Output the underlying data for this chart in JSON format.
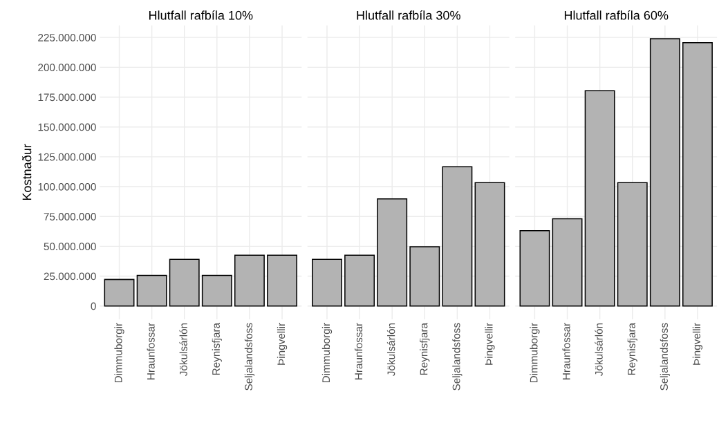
{
  "chart_data": [
    {
      "type": "bar",
      "title": "Hlutfall rafbíla 10%",
      "ylabel": "Kostnaður",
      "categories": [
        "Dimmuborgir",
        "Hraunfossar",
        "Jökulsárlón",
        "Reynisfjara",
        "Seljalandsfoss",
        "Þingvellir"
      ],
      "values": [
        22200000,
        25600000,
        39100000,
        25600000,
        42500000,
        42500000
      ],
      "color": "#b3b3b3",
      "ylim": [
        -11200000,
        235100000
      ],
      "yticks": [
        {
          "value": 0,
          "label": "0"
        },
        {
          "value": 25000000,
          "label": "25.000.000"
        },
        {
          "value": 50000000,
          "label": "50.000.000"
        },
        {
          "value": 75000000,
          "label": "75.000.000"
        },
        {
          "value": 100000000,
          "label": "100.000.000"
        },
        {
          "value": 125000000,
          "label": "125.000.000"
        },
        {
          "value": 150000000,
          "label": "150.000.000"
        },
        {
          "value": 175000000,
          "label": "175.000.000"
        },
        {
          "value": 200000000,
          "label": "200.000.000"
        },
        {
          "value": 225000000,
          "label": "225.000.000"
        }
      ],
      "grid": true
    },
    {
      "type": "bar",
      "title": "Hlutfall rafbíla 30%",
      "categories": [
        "Dimmuborgir",
        "Hraunfossar",
        "Jökulsárlón",
        "Reynisfjara",
        "Seljalandsfoss",
        "Þingvellir"
      ],
      "values": [
        39100000,
        42500000,
        89800000,
        49600000,
        116700000,
        103400000
      ],
      "color": "#b3b3b3",
      "ylim": [
        -11200000,
        235100000
      ],
      "yticks": [
        0,
        25000000,
        50000000,
        75000000,
        100000000,
        125000000,
        150000000,
        175000000,
        200000000,
        225000000
      ],
      "grid": true,
      "tick_labels": "x"
    },
    {
      "type": "bar",
      "title": "Hlutfall rafbíla 60%",
      "categories": [
        "Dimmuborgir",
        "Hraunfossar",
        "Jökulsárlón",
        "Reynisfjara",
        "Seljalandsfoss",
        "Þingvellir"
      ],
      "values": [
        63100000,
        73100000,
        180300000,
        103400000,
        223900000,
        220600000
      ],
      "color": "#b3b3b3",
      "ylim": [
        -11200000,
        235100000
      ],
      "yticks": [
        0,
        25000000,
        50000000,
        75000000,
        100000000,
        125000000,
        150000000,
        175000000,
        200000000,
        225000000
      ],
      "grid": true,
      "tick_labels": "x"
    }
  ]
}
